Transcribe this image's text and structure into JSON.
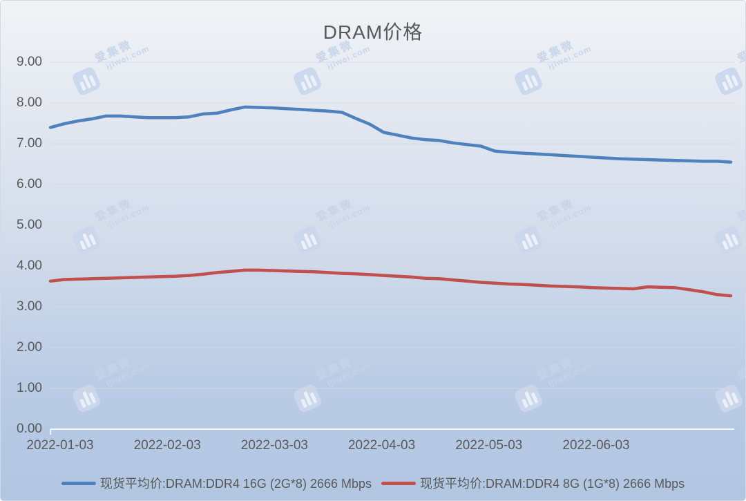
{
  "chart_data": {
    "type": "line",
    "title": "DRAM价格",
    "xlabel": "",
    "ylabel": "",
    "ylim": [
      0,
      9
    ],
    "grid": "horizontal",
    "legend_position": "bottom",
    "y_ticks": [
      "9.00",
      "8.00",
      "7.00",
      "6.00",
      "5.00",
      "4.00",
      "3.00",
      "2.00",
      "1.00",
      "0.00"
    ],
    "x_ticks": [
      "2022-01-03",
      "2022-02-03",
      "2022-03-03",
      "2022-04-03",
      "2022-05-03",
      "2022-06-03"
    ],
    "x_note": "daily spot prices from 2022-01-03 onward, sampled uniformly across the plotted range",
    "series": [
      {
        "id": "ddr4-16g",
        "name": "现货平均价:DRAM:DDR4 16G (2G*8) 2666 Mbps",
        "color": "#4f81bd",
        "values": [
          7.4,
          7.49,
          7.56,
          7.61,
          7.68,
          7.68,
          7.66,
          7.64,
          7.64,
          7.64,
          7.66,
          7.73,
          7.75,
          7.83,
          7.9,
          7.89,
          7.88,
          7.86,
          7.84,
          7.82,
          7.8,
          7.77,
          7.62,
          7.48,
          7.28,
          7.21,
          7.14,
          7.1,
          7.08,
          7.02,
          6.98,
          6.94,
          6.82,
          6.79,
          6.77,
          6.75,
          6.73,
          6.71,
          6.69,
          6.67,
          6.65,
          6.63,
          6.62,
          6.61,
          6.6,
          6.59,
          6.58,
          6.57,
          6.57,
          6.55
        ]
      },
      {
        "id": "ddr4-8g",
        "name": "现货平均价:DRAM:DDR4 8G (1G*8) 2666 Mbps",
        "color": "#c0504d",
        "values": [
          3.63,
          3.67,
          3.68,
          3.69,
          3.7,
          3.71,
          3.72,
          3.73,
          3.74,
          3.75,
          3.77,
          3.8,
          3.84,
          3.87,
          3.9,
          3.9,
          3.89,
          3.88,
          3.87,
          3.86,
          3.84,
          3.82,
          3.81,
          3.79,
          3.77,
          3.75,
          3.73,
          3.7,
          3.69,
          3.66,
          3.63,
          3.6,
          3.58,
          3.56,
          3.55,
          3.53,
          3.51,
          3.5,
          3.49,
          3.47,
          3.46,
          3.45,
          3.44,
          3.49,
          3.48,
          3.47,
          3.42,
          3.37,
          3.3,
          3.27
        ]
      }
    ]
  },
  "watermark": {
    "logo": "jiwei-bars-icon",
    "text": "爱集微",
    "domain": "ijiwei.com"
  },
  "colors": {
    "background_top": "#f1f3f7",
    "background_bottom": "#b2c6e2",
    "gridline": "#d9d9d9",
    "axis_line": "#f2f5f9",
    "text": "#595959"
  }
}
